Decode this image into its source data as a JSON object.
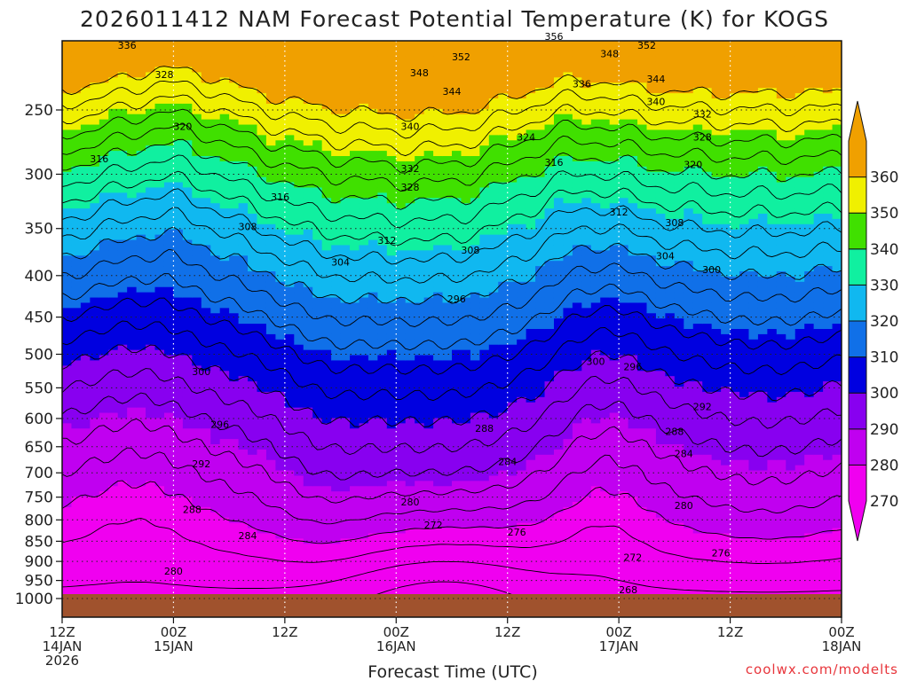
{
  "chart_data": {
    "type": "heatmap",
    "title": "2026011412 NAM Forecast Potential Temperature (K) for KOGS",
    "xlabel": "Forecast Time (UTC)",
    "ylabel": "",
    "x_ticks": [
      {
        "hour": 0,
        "lines": [
          "12Z",
          "14JAN",
          "2026"
        ]
      },
      {
        "hour": 12,
        "lines": [
          "00Z",
          "15JAN"
        ]
      },
      {
        "hour": 24,
        "lines": [
          "12Z"
        ]
      },
      {
        "hour": 36,
        "lines": [
          "00Z",
          "16JAN"
        ]
      },
      {
        "hour": 48,
        "lines": [
          "12Z"
        ]
      },
      {
        "hour": 60,
        "lines": [
          "00Z",
          "17JAN"
        ]
      },
      {
        "hour": 72,
        "lines": [
          "12Z"
        ]
      },
      {
        "hour": 84,
        "lines": [
          "00Z",
          "18JAN"
        ]
      }
    ],
    "xlim": [
      0,
      84
    ],
    "y_ticks": [
      250,
      300,
      350,
      400,
      450,
      500,
      550,
      600,
      650,
      700,
      750,
      800,
      850,
      900,
      950,
      1000
    ],
    "ylim": [
      1000,
      200
    ],
    "y_scale": "log",
    "grid": true,
    "colorbar": {
      "levels": [
        270,
        280,
        290,
        300,
        310,
        320,
        330,
        340,
        350,
        360
      ],
      "colors": [
        "#f000f0",
        "#c000f0",
        "#8800f0",
        "#0000e0",
        "#1070e8",
        "#10b8f0",
        "#10f0a0",
        "#40e000",
        "#f0f000",
        "#f0a000"
      ],
      "position": "right"
    },
    "contour_labels": [
      {
        "hour": 7,
        "p": 208,
        "value": "336"
      },
      {
        "hour": 11,
        "p": 226,
        "value": "328"
      },
      {
        "hour": 13,
        "p": 262,
        "value": "320"
      },
      {
        "hour": 4,
        "p": 287,
        "value": "316"
      },
      {
        "hour": 23.5,
        "p": 320,
        "value": "316"
      },
      {
        "hour": 20,
        "p": 348,
        "value": "308"
      },
      {
        "hour": 30,
        "p": 385,
        "value": "304"
      },
      {
        "hour": 15,
        "p": 525,
        "value": "300"
      },
      {
        "hour": 17,
        "p": 610,
        "value": "296"
      },
      {
        "hour": 15,
        "p": 682,
        "value": "292"
      },
      {
        "hour": 14,
        "p": 777,
        "value": "288"
      },
      {
        "hour": 20,
        "p": 836,
        "value": "284"
      },
      {
        "hour": 12,
        "p": 925,
        "value": "280"
      },
      {
        "hour": 38.5,
        "p": 225,
        "value": "348"
      },
      {
        "hour": 43,
        "p": 215,
        "value": "352"
      },
      {
        "hour": 42,
        "p": 237,
        "value": "344"
      },
      {
        "hour": 37.5,
        "p": 262,
        "value": "340"
      },
      {
        "hour": 37.5,
        "p": 295,
        "value": "332"
      },
      {
        "hour": 37.5,
        "p": 311,
        "value": "328"
      },
      {
        "hour": 35,
        "p": 362,
        "value": "312"
      },
      {
        "hour": 44,
        "p": 372,
        "value": "308"
      },
      {
        "hour": 42.5,
        "p": 427,
        "value": "296"
      },
      {
        "hour": 45.5,
        "p": 617,
        "value": "288"
      },
      {
        "hour": 48,
        "p": 678,
        "value": "284"
      },
      {
        "hour": 37.5,
        "p": 760,
        "value": "280"
      },
      {
        "hour": 40,
        "p": 812,
        "value": "272"
      },
      {
        "hour": 49,
        "p": 828,
        "value": "276"
      },
      {
        "hour": 53,
        "p": 203,
        "value": "356"
      },
      {
        "hour": 59,
        "p": 213,
        "value": "348"
      },
      {
        "hour": 63,
        "p": 208,
        "value": "352"
      },
      {
        "hour": 56,
        "p": 232,
        "value": "336"
      },
      {
        "hour": 64,
        "p": 229,
        "value": "344"
      },
      {
        "hour": 64,
        "p": 244,
        "value": "340"
      },
      {
        "hour": 69,
        "p": 253,
        "value": "332"
      },
      {
        "hour": 69,
        "p": 270,
        "value": "328"
      },
      {
        "hour": 50,
        "p": 270,
        "value": "324"
      },
      {
        "hour": 53,
        "p": 290,
        "value": "316"
      },
      {
        "hour": 68,
        "p": 292,
        "value": "320"
      },
      {
        "hour": 60,
        "p": 334,
        "value": "312"
      },
      {
        "hour": 66,
        "p": 344,
        "value": "308"
      },
      {
        "hour": 65,
        "p": 378,
        "value": "304"
      },
      {
        "hour": 70,
        "p": 393,
        "value": "300"
      },
      {
        "hour": 57.5,
        "p": 510,
        "value": "300"
      },
      {
        "hour": 61.5,
        "p": 518,
        "value": "296"
      },
      {
        "hour": 69,
        "p": 580,
        "value": "292"
      },
      {
        "hour": 66,
        "p": 622,
        "value": "288"
      },
      {
        "hour": 67,
        "p": 663,
        "value": "284"
      },
      {
        "hour": 67,
        "p": 768,
        "value": "280"
      },
      {
        "hour": 61.5,
        "p": 890,
        "value": "272"
      },
      {
        "hour": 71,
        "p": 878,
        "value": "276"
      },
      {
        "hour": 61,
        "p": 975,
        "value": "268"
      }
    ]
  },
  "credit": "coolwx.com/modelts"
}
